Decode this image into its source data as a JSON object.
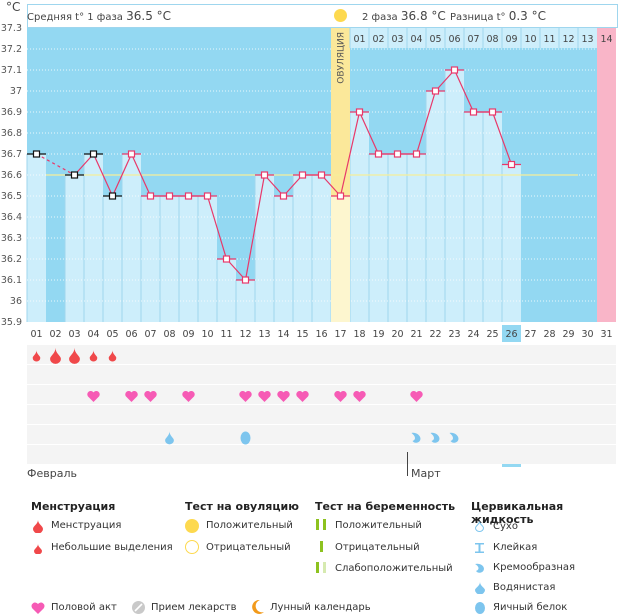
{
  "header": {
    "unit": "°C",
    "phase1_label": "Средняя t° 1 фаза",
    "phase1_value": "36.5 °C",
    "phase2_label": "2 фаза",
    "phase2_value": "36.8 °C",
    "diff_label": "Разница t°",
    "diff_value": "0.3 °C",
    "ovulation_label": "ОВУЛЯЦИЯ"
  },
  "colors": {
    "chart_bg": "#93d8f2",
    "bar": "#cdeefb",
    "line": "#e8386a",
    "coverline": "#f6ef9a",
    "ovulation": "#fbe89a",
    "ovulation_light": "#fdf6cf",
    "period_next": "#f9b5c8",
    "today": "#93d8f2",
    "menstruation": "#f0484a",
    "heart": "#f65bb5",
    "fluid": "#7dc5ee"
  },
  "chart_data": {
    "type": "line",
    "title": "",
    "xlabel": "",
    "ylabel": "°C",
    "ylim": [
      35.9,
      37.3
    ],
    "yticks": [
      "35.9",
      "36",
      "36.1",
      "36.2",
      "36.3",
      "36.4",
      "36.5",
      "36.6",
      "36.7",
      "36.8",
      "36.9",
      "37",
      "37.1",
      "37.2",
      "37.3"
    ],
    "cycle_days": [
      "01",
      "02",
      "03",
      "04",
      "05",
      "06",
      "07",
      "08",
      "09",
      "10",
      "11",
      "12",
      "13",
      "14",
      "15",
      "16",
      "17",
      "18",
      "19",
      "20",
      "21",
      "22",
      "23",
      "24",
      "25",
      "26",
      "27",
      "28",
      "29",
      "30",
      "31"
    ],
    "temperatures": [
      36.7,
      null,
      36.6,
      36.7,
      36.5,
      36.7,
      36.5,
      36.5,
      36.5,
      36.5,
      36.2,
      36.1,
      36.6,
      36.5,
      36.6,
      36.6,
      36.5,
      36.9,
      36.7,
      36.7,
      36.7,
      37.0,
      37.1,
      36.9,
      36.9,
      36.65,
      null,
      null,
      null,
      null,
      null
    ],
    "excluded_days": [
      1,
      3,
      4,
      5
    ],
    "coverline": 36.6,
    "ovulation_day": 17,
    "today_day": 26,
    "next_period_day": 31,
    "phase2_day_labels": [
      "01",
      "02",
      "03",
      "04",
      "05",
      "06",
      "07",
      "08",
      "09",
      "10",
      "11",
      "12",
      "13",
      "14"
    ],
    "calendar_dates": [
      "09",
      "10",
      "11",
      "12",
      "13",
      "14",
      "15",
      "16",
      "17",
      "18",
      "19",
      "20",
      "21",
      "22",
      "23",
      "24",
      "25",
      "26",
      "27",
      "28",
      "01",
      "02",
      "03",
      "04",
      "05",
      "06",
      "07",
      "08",
      "09",
      "10",
      "11"
    ],
    "weekend_dates_idx": [
      5,
      6,
      12,
      13,
      19,
      20,
      26,
      27
    ],
    "months": [
      {
        "label": "Февраль",
        "start_idx": 0
      },
      {
        "label": "Март",
        "start_idx": 20
      }
    ],
    "menstruation": {
      "heavy": [
        2,
        3
      ],
      "light": [
        1,
        4,
        5
      ]
    },
    "intercourse_days": [
      4,
      6,
      7,
      9,
      12,
      13,
      14,
      15,
      17,
      18,
      21
    ],
    "cervical_fluid": [
      {
        "day": 8,
        "type": "watery"
      },
      {
        "day": 12,
        "type": "egg-white"
      },
      {
        "day": 21,
        "type": "creamy"
      },
      {
        "day": 22,
        "type": "creamy"
      },
      {
        "day": 23,
        "type": "creamy"
      }
    ]
  },
  "legend": {
    "menstruation": {
      "title": "Менструация",
      "items": [
        "Менструация",
        "Небольшие выделения"
      ]
    },
    "ovulation_test": {
      "title": "Тест на овуляцию",
      "items": [
        "Положительный",
        "Отрицательный"
      ]
    },
    "pregnancy_test": {
      "title": "Тест на беременность",
      "items": [
        "Положительный",
        "Отрицательный",
        "Слабоположительный"
      ]
    },
    "cervical_fluid": {
      "title": "Цервикальная жидкость",
      "items": [
        "Сухо",
        "Клейкая",
        "Кремообразная",
        "Водянистая",
        "Яичный белок"
      ]
    },
    "bottom": [
      "Половой акт",
      "Прием лекарств",
      "Лунный календарь"
    ]
  }
}
